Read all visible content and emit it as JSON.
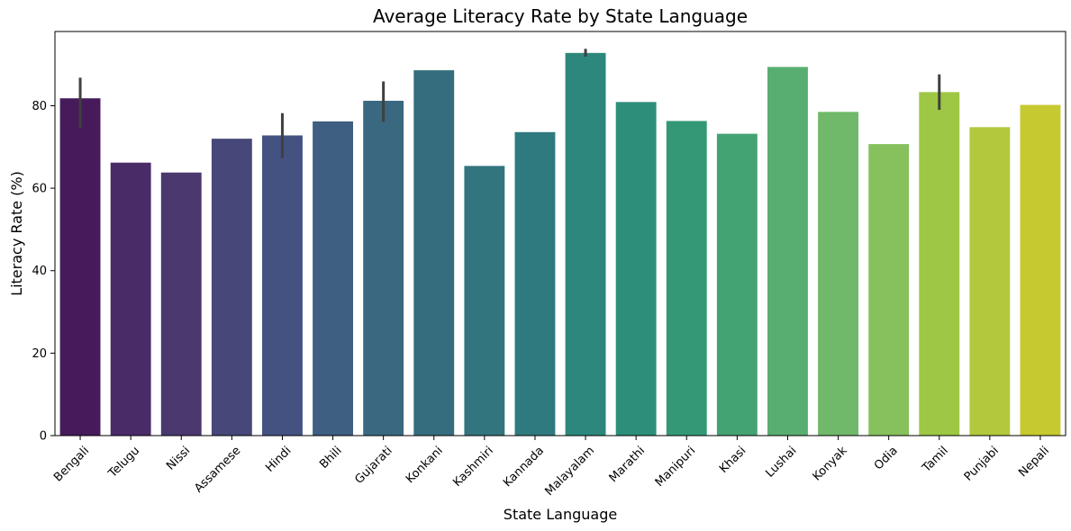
{
  "chart_data": {
    "type": "bar",
    "title": "Average Literacy Rate by State Language",
    "xlabel": "State Language",
    "ylabel": "Literacy Rate (%)",
    "ylim": [
      0,
      98
    ],
    "yticks": [
      0,
      20,
      40,
      60,
      80
    ],
    "grid": false,
    "legend": "none",
    "categories": [
      "Bengali",
      "Telugu",
      "Nissi",
      "Assamese",
      "Hindi",
      "Bhili",
      "Gujarati",
      "Konkani",
      "Kashmiri",
      "Kannada",
      "Malayalam",
      "Marathi",
      "Manipuri",
      "Khasi",
      "Lushai",
      "Konyak",
      "Odia",
      "Tamil",
      "Punjabi",
      "Nepali"
    ],
    "values": [
      81.8,
      66.2,
      63.8,
      72.0,
      72.8,
      76.2,
      81.2,
      88.6,
      65.4,
      73.6,
      92.8,
      80.9,
      76.3,
      73.2,
      89.4,
      78.5,
      70.7,
      83.3,
      74.8,
      80.2
    ],
    "error_bars": [
      [
        74.6,
        86.8
      ],
      null,
      null,
      null,
      [
        67.3,
        78.2
      ],
      null,
      [
        76.1,
        85.9
      ],
      null,
      null,
      null,
      [
        91.9,
        93.8
      ],
      null,
      null,
      null,
      null,
      null,
      null,
      [
        79.0,
        87.6
      ],
      null,
      null
    ],
    "colors": [
      "#471b5b",
      "#492b68",
      "#4a386f",
      "#464879",
      "#435281",
      "#3e5e82",
      "#396880",
      "#356d7e",
      "#33757f",
      "#2f7a7f",
      "#2d877c",
      "#2d8f79",
      "#349877",
      "#44a373",
      "#58ae70",
      "#70b96a",
      "#86c15e",
      "#9dc744",
      "#b4c83d",
      "#c7c930"
    ],
    "error_color": "#404040"
  }
}
